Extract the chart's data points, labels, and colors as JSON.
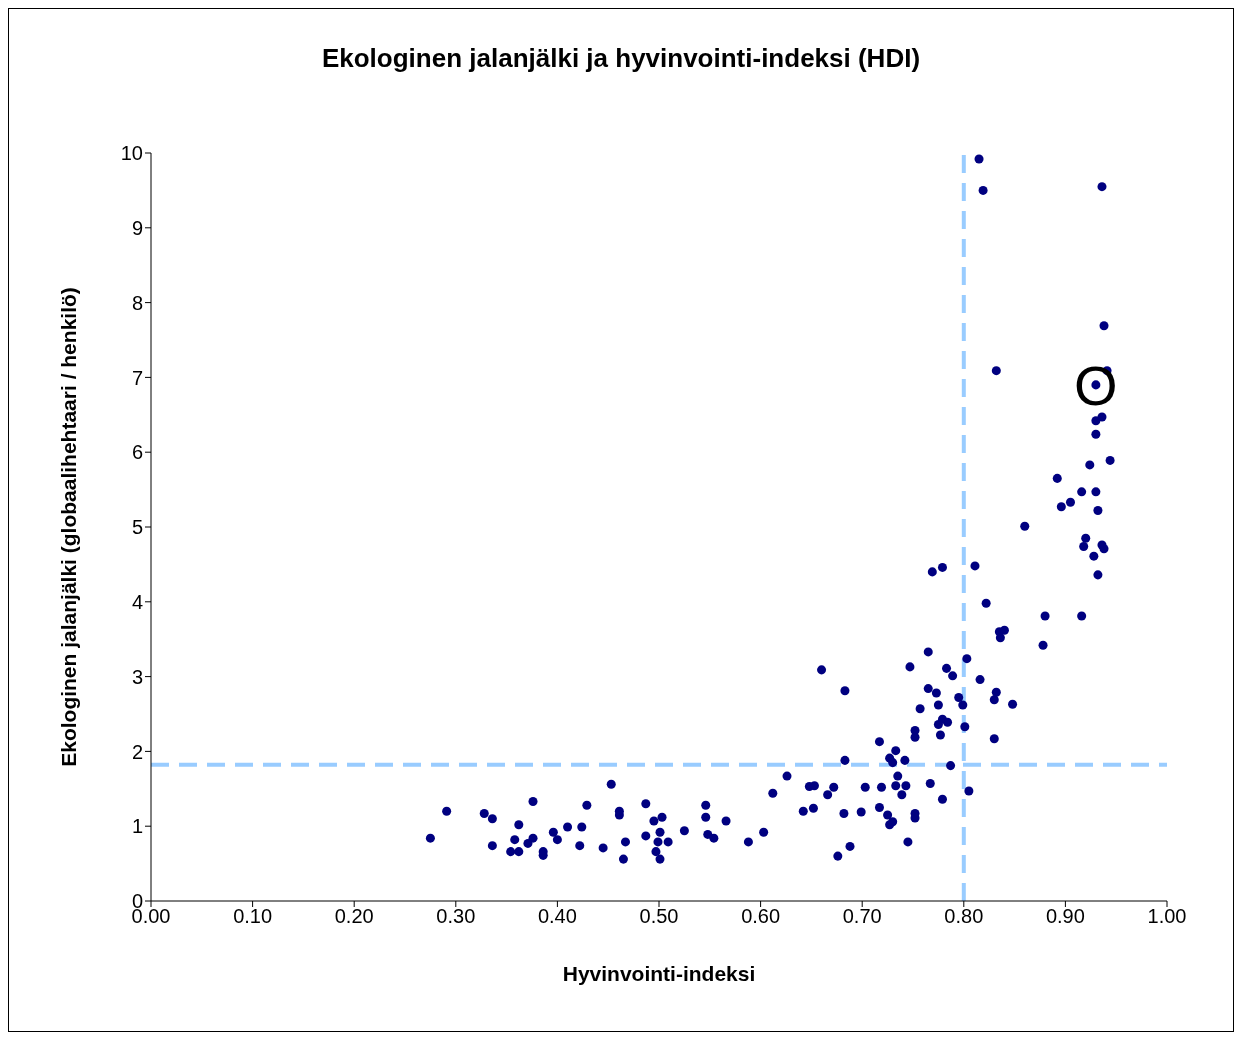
{
  "chart_data": {
    "type": "scatter",
    "title": "Ekologinen jalanjälki ja hyvinvointi-indeksi (HDI)",
    "xlabel": "Hyvinvointi-indeksi",
    "ylabel": "Ekologinen jalanjälki (globaalihehtaari / henkilö)",
    "xlim": [
      0,
      1
    ],
    "ylim": [
      0,
      10
    ],
    "xticks": [
      {
        "value": 0,
        "label": "0.00"
      },
      {
        "value": 0.1,
        "label": "0.10"
      },
      {
        "value": 0.2,
        "label": "0.20"
      },
      {
        "value": 0.3,
        "label": "0.30"
      },
      {
        "value": 0.4,
        "label": "0.40"
      },
      {
        "value": 0.5,
        "label": "0.50"
      },
      {
        "value": 0.6,
        "label": "0.60"
      },
      {
        "value": 0.7,
        "label": "0.70"
      },
      {
        "value": 0.8,
        "label": "0.80"
      },
      {
        "value": 0.9,
        "label": "0.90"
      },
      {
        "value": 1,
        "label": "1.00"
      }
    ],
    "yticks": [
      0,
      1,
      2,
      3,
      4,
      5,
      6,
      7,
      8,
      9,
      10
    ],
    "marker": "circle",
    "ref_lines": [
      {
        "axis": "y",
        "value": 1.82,
        "color": "#99ccff",
        "line_style": "dashed"
      },
      {
        "axis": "x",
        "value": 0.8,
        "color": "#99ccff",
        "line_style": "dashed"
      }
    ],
    "annotations": [
      {
        "text": "O",
        "x": 0.93,
        "y": 6.9
      }
    ],
    "series": [
      {
        "color": "#000080",
        "x": [
          0.275,
          0.291,
          0.328,
          0.336,
          0.336,
          0.354,
          0.358,
          0.362,
          0.362,
          0.371,
          0.376,
          0.376,
          0.386,
          0.386,
          0.396,
          0.4,
          0.41,
          0.422,
          0.424,
          0.429,
          0.445,
          0.453,
          0.461,
          0.461,
          0.465,
          0.467,
          0.487,
          0.487,
          0.495,
          0.497,
          0.499,
          0.501,
          0.501,
          0.503,
          0.509,
          0.525,
          0.546,
          0.546,
          0.548,
          0.554,
          0.566,
          0.588,
          0.603,
          0.811,
          0.769,
          0.779,
          0.822,
          0.835,
          0.84,
          0.836,
          0.765,
          0.803,
          0.747,
          0.66,
          0.783,
          0.789,
          0.816,
          0.683,
          0.765,
          0.773,
          0.795,
          0.799,
          0.832,
          0.83,
          0.775,
          0.757,
          0.779,
          0.784,
          0.775,
          0.801,
          0.752,
          0.752,
          0.777,
          0.83,
          0.717,
          0.733,
          0.727,
          0.73,
          0.742,
          0.683,
          0.787,
          0.626,
          0.735,
          0.612,
          0.648,
          0.653,
          0.672,
          0.666,
          0.703,
          0.719,
          0.733,
          0.743,
          0.739,
          0.767,
          0.779,
          0.805,
          0.642,
          0.652,
          0.682,
          0.699,
          0.717,
          0.725,
          0.73,
          0.727,
          0.752,
          0.752,
          0.688,
          0.676,
          0.745,
          0.815,
          0.819,
          0.936,
          0.938,
          0.832,
          0.941,
          0.93,
          0.936,
          0.93,
          0.93,
          0.944,
          0.924,
          0.892,
          0.916,
          0.93,
          0.905,
          0.896,
          0.932,
          0.86,
          0.92,
          0.918,
          0.936,
          0.938,
          0.928,
          0.932,
          0.88,
          0.916,
          0.878,
          0.848
        ],
        "values": [
          0.84,
          1.2,
          1.17,
          1.1,
          0.74,
          0.66,
          0.82,
          1.02,
          0.66,
          0.77,
          1.33,
          0.84,
          0.66,
          0.61,
          0.92,
          0.82,
          0.99,
          0.74,
          0.99,
          1.28,
          0.71,
          1.56,
          1.2,
          1.15,
          0.56,
          0.79,
          1.3,
          0.87,
          1.07,
          0.66,
          0.79,
          0.92,
          0.56,
          1.12,
          0.79,
          0.94,
          1.28,
          1.12,
          0.89,
          0.84,
          1.07,
          0.79,
          0.92,
          4.48,
          4.4,
          4.46,
          3.98,
          3.6,
          3.62,
          3.52,
          3.33,
          3.24,
          3.13,
          3.09,
          3.11,
          3.01,
          2.96,
          2.81,
          2.84,
          2.78,
          2.72,
          2.62,
          2.79,
          2.69,
          2.62,
          2.57,
          2.43,
          2.39,
          2.36,
          2.33,
          2.28,
          2.19,
          2.22,
          2.17,
          2.13,
          2.01,
          1.91,
          1.85,
          1.88,
          1.88,
          1.81,
          1.67,
          1.67,
          1.44,
          1.53,
          1.54,
          1.52,
          1.42,
          1.52,
          1.52,
          1.54,
          1.54,
          1.42,
          1.57,
          1.36,
          1.47,
          1.2,
          1.24,
          1.17,
          1.19,
          1.25,
          1.15,
          1.06,
          1.02,
          1.17,
          1.11,
          0.73,
          0.6,
          0.79,
          9.92,
          9.5,
          9.55,
          7.69,
          7.09,
          7.09,
          6.9,
          6.47,
          6.42,
          6.24,
          5.89,
          5.83,
          5.65,
          5.47,
          5.47,
          5.33,
          5.27,
          5.22,
          5.01,
          4.85,
          4.74,
          4.76,
          4.71,
          4.61,
          4.36,
          3.81,
          3.81,
          3.42,
          2.63
        ]
      }
    ]
  }
}
